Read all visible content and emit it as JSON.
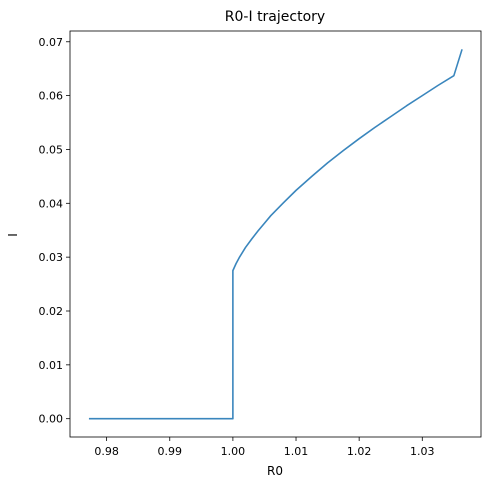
{
  "chart_data": {
    "type": "line",
    "title": "R0-I trajectory",
    "xlabel": "R0",
    "ylabel": "I",
    "xlim": [
      0.9742,
      1.0393
    ],
    "ylim": [
      -0.0034,
      0.072
    ],
    "xticks": [
      0.98,
      0.99,
      1.0,
      1.01,
      1.02,
      1.03
    ],
    "xtick_labels": [
      "0.98",
      "0.99",
      "1.00",
      "1.01",
      "1.02",
      "1.03"
    ],
    "yticks": [
      0.0,
      0.01,
      0.02,
      0.03,
      0.04,
      0.05,
      0.06,
      0.07
    ],
    "ytick_labels": [
      "0.00",
      "0.01",
      "0.02",
      "0.03",
      "0.04",
      "0.05",
      "0.06",
      "0.07"
    ],
    "grid": false,
    "series": [
      {
        "color": "#3a86bd",
        "x": [
          0.9772,
          0.98,
          0.985,
          0.99,
          0.995,
          1.0,
          1.0,
          1.0005,
          1.001,
          1.002,
          1.003,
          1.004,
          1.005,
          1.006,
          1.008,
          1.01,
          1.0125,
          1.015,
          1.0175,
          1.02,
          1.0225,
          1.025,
          1.0275,
          1.03,
          1.0325,
          1.035,
          1.0363
        ],
        "y": [
          0.0,
          0.0,
          0.0,
          0.0,
          0.0,
          0.0,
          0.0275,
          0.0288,
          0.0299,
          0.0318,
          0.0334,
          0.0349,
          0.0363,
          0.0377,
          0.0401,
          0.0424,
          0.045,
          0.0475,
          0.0498,
          0.052,
          0.0541,
          0.0561,
          0.0581,
          0.06,
          0.0619,
          0.0637,
          0.0686
        ]
      }
    ]
  }
}
